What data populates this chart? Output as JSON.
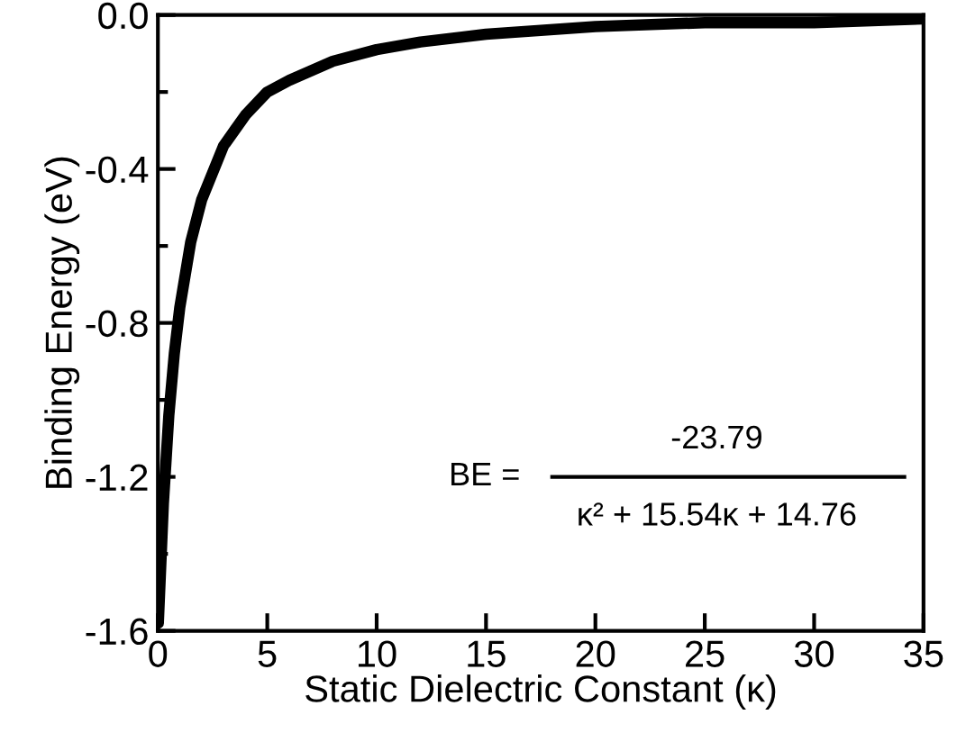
{
  "chart_data": {
    "type": "line",
    "xlabel": "Static Dielectric Constant (κ)",
    "ylabel": "Binding Energy (eV)",
    "xlim": [
      0,
      35
    ],
    "xticks": [
      0,
      5,
      10,
      15,
      20,
      25,
      30,
      35
    ],
    "ylim": [
      -1.6,
      0.0
    ],
    "yticks": [
      {
        "value": -1.6,
        "label": "-1.6"
      },
      {
        "value": -1.2,
        "label": "-1.2"
      },
      {
        "value": -0.8,
        "label": "-0.8"
      },
      {
        "value": -0.4,
        "label": "-0.4"
      },
      {
        "value": 0.0,
        "label": "0.0"
      }
    ],
    "grid": false,
    "legend": false,
    "marker": "none",
    "line_style": "solid",
    "series": [
      {
        "color": "#000000",
        "x": [
          0.02,
          0.25,
          0.5,
          0.75,
          1,
          1.5,
          2,
          3,
          4,
          5,
          6,
          8,
          10,
          12,
          15,
          20,
          25,
          30,
          35
        ],
        "values": [
          -1.58,
          -1.27,
          -1.04,
          -0.88,
          -0.76,
          -0.59,
          -0.48,
          -0.34,
          -0.26,
          -0.2,
          -0.17,
          -0.12,
          -0.09,
          -0.07,
          -0.05,
          -0.03,
          -0.02,
          -0.02,
          -0.01
        ]
      }
    ],
    "annotations": [
      "BE =",
      "-23.79",
      "κ² + 15.54κ + 14.76"
    ]
  }
}
